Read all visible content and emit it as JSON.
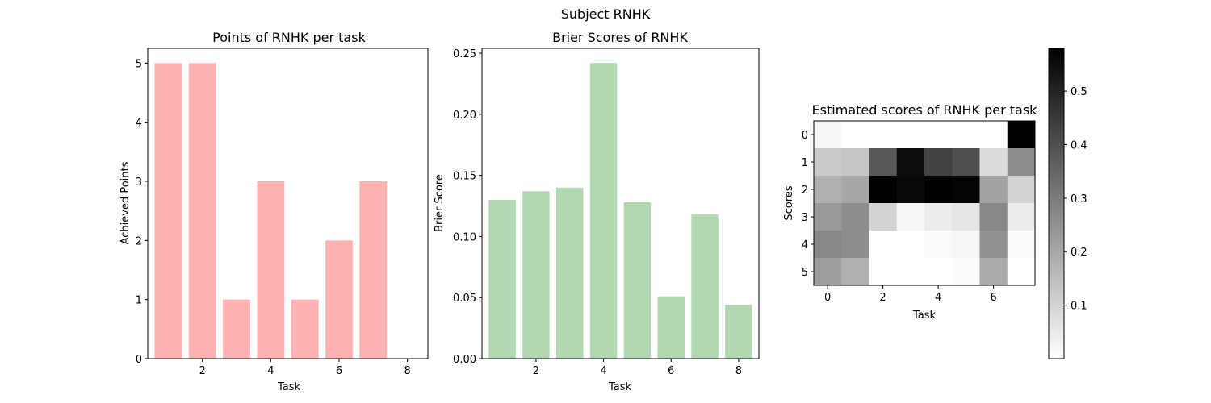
{
  "figure": {
    "suptitle": "Subject RNHK"
  },
  "chart_data": [
    {
      "type": "bar",
      "title": "Points of RNHK per task",
      "xlabel": "Task",
      "ylabel": "Achieved Points",
      "x": [
        1,
        2,
        3,
        4,
        5,
        6,
        7,
        8
      ],
      "values": [
        5,
        5,
        1,
        3,
        1,
        2,
        3,
        0
      ],
      "xlim": [
        0.4,
        8.6
      ],
      "ylim": [
        0,
        5.25
      ],
      "xticks": [
        2,
        4,
        6,
        8
      ],
      "yticks": [
        0,
        1,
        2,
        3,
        4,
        5
      ],
      "bar_color": "#ffb2b2",
      "grid": false
    },
    {
      "type": "bar",
      "title": "Brier Scores of RNHK",
      "xlabel": "Task",
      "ylabel": "Brier Score",
      "x": [
        1,
        2,
        3,
        4,
        5,
        6,
        7,
        8
      ],
      "values": [
        0.13,
        0.137,
        0.14,
        0.242,
        0.128,
        0.051,
        0.118,
        0.044
      ],
      "xlim": [
        0.4,
        8.6
      ],
      "ylim": [
        0,
        0.254
      ],
      "xticks": [
        2,
        4,
        6,
        8
      ],
      "yticks": [
        "0.00",
        "0.05",
        "0.10",
        "0.15",
        "0.20",
        "0.25"
      ],
      "bar_color": "#b2d8b2",
      "grid": false
    },
    {
      "type": "heatmap",
      "title": "Estimated scores of RNHK per task",
      "xlabel": "Task",
      "ylabel": "Scores",
      "xticks": [
        0,
        2,
        4,
        6
      ],
      "yticks": [
        0,
        1,
        2,
        3,
        4,
        5
      ],
      "colormap": "Greys",
      "vmin": 0.0,
      "vmax": 0.58,
      "colorbar_ticks": [
        "0.1",
        "0.2",
        "0.3",
        "0.4",
        "0.5"
      ],
      "values": [
        [
          0.02,
          0.0,
          0.0,
          0.0,
          0.0,
          0.0,
          0.0,
          0.58
        ],
        [
          0.12,
          0.13,
          0.38,
          0.55,
          0.43,
          0.4,
          0.08,
          0.26
        ],
        [
          0.18,
          0.2,
          0.58,
          0.56,
          0.6,
          0.57,
          0.21,
          0.1
        ],
        [
          0.23,
          0.26,
          0.1,
          0.02,
          0.04,
          0.06,
          0.27,
          0.04
        ],
        [
          0.27,
          0.26,
          0.0,
          0.0,
          0.01,
          0.02,
          0.25,
          0.01
        ],
        [
          0.22,
          0.18,
          0.0,
          0.0,
          0.0,
          0.01,
          0.19,
          0.0
        ]
      ]
    }
  ]
}
